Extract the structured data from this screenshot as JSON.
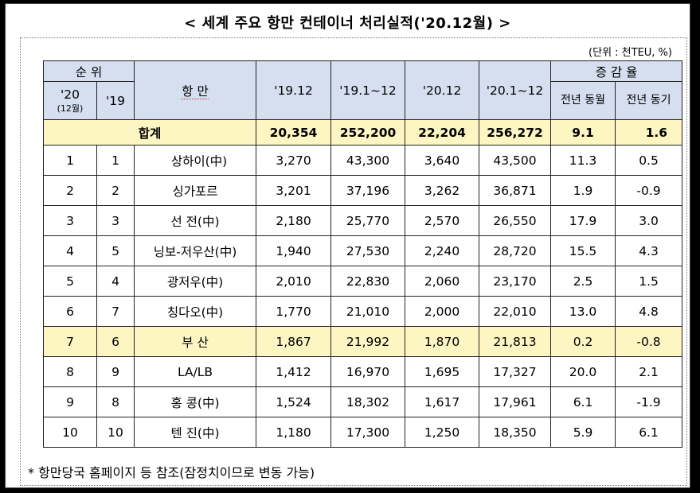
{
  "title": "< 세계 주요 항만 컨테이너 처리실적('20.12월) >",
  "unit": "(단위 : 천TEU, %)",
  "headers": {
    "rank": "순 위",
    "rank_20": "'20",
    "rank_20_sub": "(12월)",
    "rank_19": "'19",
    "port": "항 만",
    "col_1912": "'19.12",
    "col_1901_12": "'19.1~12",
    "col_2012": "'20.12",
    "col_2001_12": "'20.1~12",
    "change": "증 감 율",
    "change_mom": "전년 동월",
    "change_ytd": "전년 동기"
  },
  "total": {
    "label": "합계",
    "v1912": "20,354",
    "v1901_12": "252,200",
    "v2012": "22,204",
    "v2001_12": "256,272",
    "mom": "9.1",
    "ytd": "1.6"
  },
  "rows": [
    {
      "r20": "1",
      "r19": "1",
      "port": "상하이(中)",
      "v1912": "3,270",
      "v1901_12": "43,300",
      "v2012": "3,640",
      "v2001_12": "43,500",
      "mom": "11.3",
      "ytd": "0.5"
    },
    {
      "r20": "2",
      "r19": "2",
      "port": "싱가포르",
      "v1912": "3,201",
      "v1901_12": "37,196",
      "v2012": "3,262",
      "v2001_12": "36,871",
      "mom": "1.9",
      "ytd": "-0.9"
    },
    {
      "r20": "3",
      "r19": "3",
      "port": "선 전(中)",
      "v1912": "2,180",
      "v1901_12": "25,770",
      "v2012": "2,570",
      "v2001_12": "26,550",
      "mom": "17.9",
      "ytd": "3.0"
    },
    {
      "r20": "4",
      "r19": "5",
      "port": "닝보-저우산(中)",
      "v1912": "1,940",
      "v1901_12": "27,530",
      "v2012": "2,240",
      "v2001_12": "28,720",
      "mom": "15.5",
      "ytd": "4.3"
    },
    {
      "r20": "5",
      "r19": "4",
      "port": "광저우(中)",
      "v1912": "2,010",
      "v1901_12": "22,830",
      "v2012": "2,060",
      "v2001_12": "23,170",
      "mom": "2.5",
      "ytd": "1.5"
    },
    {
      "r20": "6",
      "r19": "7",
      "port": "칭다오(中)",
      "v1912": "1,770",
      "v1901_12": "21,010",
      "v2012": "2,000",
      "v2001_12": "22,010",
      "mom": "13.0",
      "ytd": "4.8"
    },
    {
      "r20": "7",
      "r19": "6",
      "port": "부 산",
      "v1912": "1,867",
      "v1901_12": "21,992",
      "v2012": "1,870",
      "v2001_12": "21,813",
      "mom": "0.2",
      "ytd": "-0.8"
    },
    {
      "r20": "8",
      "r19": "9",
      "port": "LA/LB",
      "v1912": "1,412",
      "v1901_12": "16,970",
      "v2012": "1,695",
      "v2001_12": "17,327",
      "mom": "20.0",
      "ytd": "2.1"
    },
    {
      "r20": "9",
      "r19": "8",
      "port": "홍 콩(中)",
      "v1912": "1,524",
      "v1901_12": "18,302",
      "v2012": "1,617",
      "v2001_12": "17,961",
      "mom": "6.1",
      "ytd": "-1.9"
    },
    {
      "r20": "10",
      "r19": "10",
      "port": "텐 진(中)",
      "v1912": "1,180",
      "v1901_12": "17,300",
      "v2012": "1,250",
      "v2001_12": "18,350",
      "mom": "5.9",
      "ytd": "6.1"
    }
  ],
  "highlight_row_index": 6,
  "footnote": "* 항만당국 홈페이지 등 참조(잠정치이므로 변동 가능)",
  "colors": {
    "header_bg": "#d6dff0",
    "highlight_bg": "#fdf6c3",
    "spellcheck_underline": "#d33"
  }
}
